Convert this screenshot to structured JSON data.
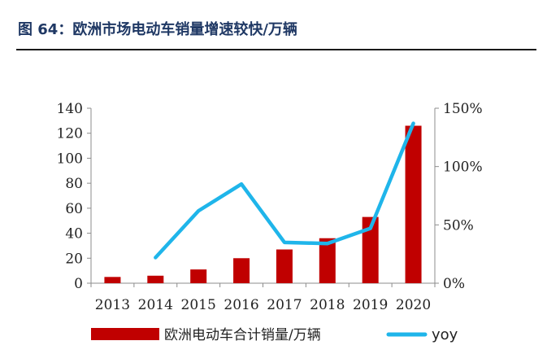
{
  "title": "图 64：欧洲市场电动车销量增速较快/万辆",
  "chart_data": {
    "type": "bar",
    "categories": [
      "2013",
      "2014",
      "2015",
      "2016",
      "2017",
      "2018",
      "2019",
      "2020"
    ],
    "series": [
      {
        "name": "欧洲电动车合计销量/万辆",
        "type": "bar",
        "axis": "left",
        "values": [
          5,
          6,
          11,
          20,
          27,
          36,
          53,
          126
        ],
        "color": "#c00000"
      },
      {
        "name": "yoy",
        "type": "line",
        "axis": "right",
        "values": [
          null,
          0.22,
          0.62,
          0.85,
          0.35,
          0.34,
          0.47,
          1.37
        ],
        "color": "#1fb5ea"
      }
    ],
    "yleft": {
      "range": [
        0,
        140
      ],
      "ticks": [
        0,
        20,
        40,
        60,
        80,
        100,
        120,
        140
      ]
    },
    "yright": {
      "range": [
        0,
        1.5
      ],
      "ticks": [
        "0%",
        "50%",
        "100%",
        "150%"
      ]
    },
    "legend": {
      "position": "bottom"
    },
    "grid": false
  }
}
